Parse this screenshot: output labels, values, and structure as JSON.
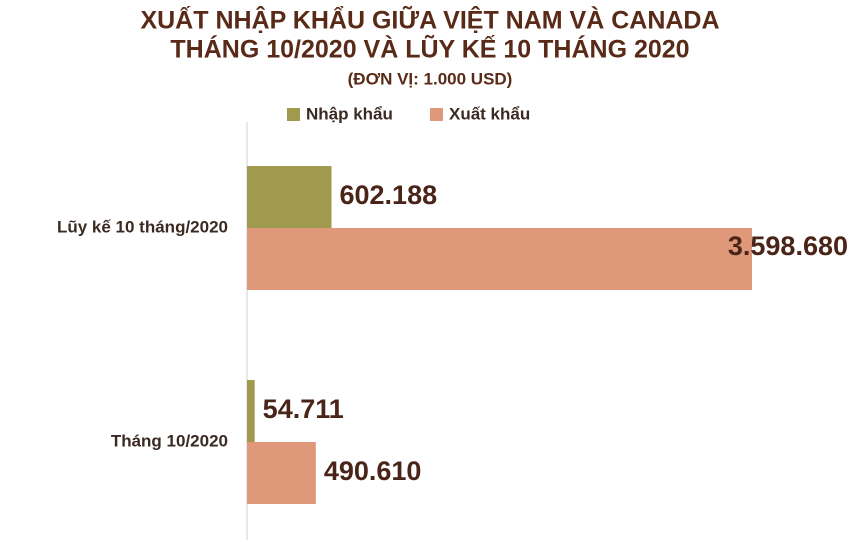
{
  "chart_data": {
    "type": "bar",
    "orientation": "horizontal",
    "title": [
      "XUẤT NHẬP KHẨU GIỮA VIỆT NAM VÀ CANADA",
      "THÁNG 10/2020 VÀ LŨY KẾ 10 THÁNG 2020"
    ],
    "subtitle": "(ĐƠN VỊ: 1.000 USD)",
    "categories": [
      "Lũy kế 10 tháng/2020",
      "Tháng 10/2020"
    ],
    "series": [
      {
        "name": "Nhập khẩu",
        "color": "#a09a4f",
        "values": [
          602188,
          54711
        ],
        "value_labels": [
          "602.188",
          "54.711"
        ]
      },
      {
        "name": "Xuất khẩu",
        "color": "#e0987a",
        "values": [
          3598680,
          490610
        ],
        "value_labels": [
          "3.598.680",
          "490.610"
        ]
      }
    ]
  }
}
